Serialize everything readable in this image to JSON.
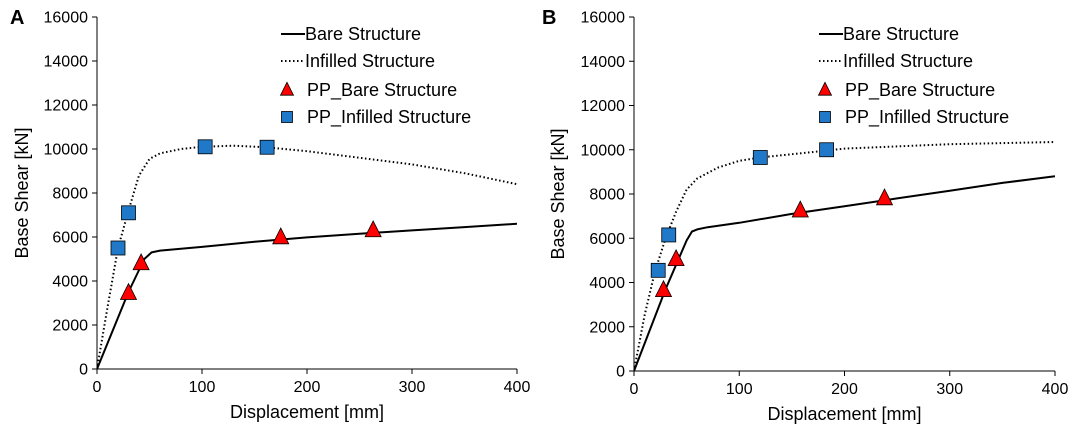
{
  "chart_data": [
    {
      "panel_label": "A",
      "type": "line",
      "xlabel": "Displacement [mm]",
      "ylabel": "Base Shear [kN]",
      "xlim": [
        0,
        400
      ],
      "ylim": [
        0,
        16000
      ],
      "xticks": [
        0,
        100,
        200,
        300,
        400
      ],
      "yticks": [
        0,
        2000,
        4000,
        6000,
        8000,
        10000,
        12000,
        14000,
        16000
      ],
      "grid": false,
      "legend_position": "top-right",
      "series": [
        {
          "name": "Bare Structure",
          "style": "solid",
          "color": "#000000",
          "x": [
            0,
            30,
            45,
            52,
            60,
            100,
            150,
            200,
            250,
            300,
            350,
            400
          ],
          "y": [
            0,
            3500,
            5000,
            5300,
            5380,
            5550,
            5780,
            5980,
            6150,
            6300,
            6450,
            6600
          ]
        },
        {
          "name": "Infilled Structure",
          "style": "dotted",
          "color": "#000000",
          "x": [
            0,
            10,
            20,
            30,
            40,
            50,
            60,
            80,
            100,
            130,
            160,
            200,
            250,
            300,
            350,
            400
          ],
          "y": [
            0,
            2800,
            5500,
            7200,
            8800,
            9550,
            9800,
            10000,
            10100,
            10150,
            10080,
            9900,
            9600,
            9300,
            8900,
            8400
          ]
        },
        {
          "name": "PP_Bare Structure",
          "style": "marker",
          "marker": "triangle",
          "color": "#ff0000",
          "x": [
            30,
            42,
            175,
            263
          ],
          "y": [
            3450,
            4800,
            5980,
            6300
          ]
        },
        {
          "name": "PP_Infilled Structure",
          "style": "marker",
          "marker": "square",
          "color": "#1f78c8",
          "x": [
            20,
            30,
            103,
            162
          ],
          "y": [
            5500,
            7100,
            10100,
            10080
          ]
        }
      ]
    },
    {
      "panel_label": "B",
      "type": "line",
      "xlabel": "Displacement [mm]",
      "ylabel": "Base Shear [kN]",
      "xlim": [
        0,
        400
      ],
      "ylim": [
        0,
        16000
      ],
      "xticks": [
        0,
        100,
        200,
        300,
        400
      ],
      "yticks": [
        0,
        2000,
        4000,
        6000,
        8000,
        10000,
        12000,
        14000,
        16000
      ],
      "grid": false,
      "legend_position": "top-right",
      "series": [
        {
          "name": "Bare Structure",
          "style": "solid",
          "color": "#000000",
          "x": [
            0,
            30,
            40,
            50,
            55,
            60,
            70,
            100,
            150,
            200,
            250,
            300,
            350,
            400
          ],
          "y": [
            0,
            3700,
            4800,
            5900,
            6300,
            6400,
            6500,
            6700,
            7100,
            7450,
            7800,
            8150,
            8500,
            8800
          ]
        },
        {
          "name": "Infilled Structure",
          "style": "dotted",
          "color": "#000000",
          "x": [
            0,
            10,
            20,
            30,
            40,
            50,
            60,
            80,
            100,
            120,
            150,
            180,
            200,
            250,
            300,
            350,
            400
          ],
          "y": [
            0,
            2500,
            4500,
            6000,
            7200,
            8200,
            8700,
            9200,
            9500,
            9650,
            9800,
            9950,
            10050,
            10150,
            10250,
            10300,
            10350
          ]
        },
        {
          "name": "PP_Bare Structure",
          "style": "marker",
          "marker": "triangle",
          "color": "#ff0000",
          "x": [
            28,
            40,
            158,
            238
          ],
          "y": [
            3650,
            5050,
            7250,
            7800
          ]
        },
        {
          "name": "PP_Infilled Structure",
          "style": "marker",
          "marker": "square",
          "color": "#1f78c8",
          "x": [
            23,
            33,
            120,
            183
          ],
          "y": [
            4550,
            6150,
            9650,
            10000
          ]
        }
      ]
    }
  ]
}
